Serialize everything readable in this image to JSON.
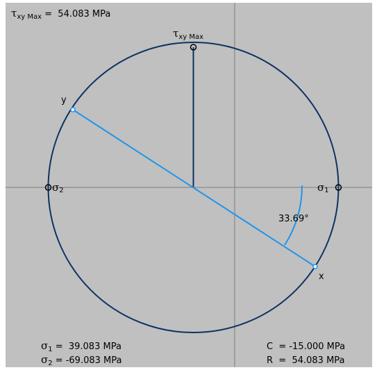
{
  "tau_max_readout": {
    "symbol": "τ",
    "subscript": "xy Max",
    "text": " =  54.083 MPa"
  },
  "tau_max_label": {
    "symbol": "τ",
    "subscript": "xy Max"
  },
  "y_label": "y",
  "x_label": "x",
  "sigma2_label": {
    "symbol": "σ",
    "subscript": "2"
  },
  "sigma1_label": {
    "symbol": "σ",
    "subscript": "1"
  },
  "angle_label": "33.69°",
  "sigma1_readout": {
    "symbol": "σ",
    "subscript": "1",
    "text": " =  39.083 MPa"
  },
  "sigma2_readout": {
    "symbol": "σ",
    "subscript": "2",
    "text": " = -69.083 MPa"
  },
  "center_readout": "C  = -15.000 MPa",
  "radius_readout": "R  =  54.083 MPa",
  "colors": {
    "background": "#c0c0c0",
    "circle": "#0d3263",
    "diameter": "#1f95ea",
    "axes": "#7d7d7d"
  }
}
